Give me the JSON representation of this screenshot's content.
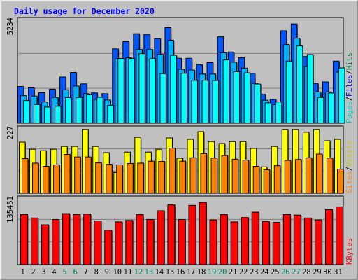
{
  "title": "Daily usage for December 2020",
  "colors": {
    "background": "#c0c0c0",
    "grid": "#808080",
    "title": "#0000ff",
    "pages_fill": "#0057ff",
    "files_fill": "#00b4ff",
    "hits_fill": "#00ffff",
    "visits_fill": "#ffff00",
    "sites_fill": "#ff8000",
    "kbytes_fill": "#ff0000",
    "weekend_day_label": "#008060",
    "weekday_label": "#000000",
    "legend_pages": "#00c8c8",
    "legend_files": "#0000ff",
    "legend_hits": "#008040",
    "legend_sites": "#ff8000",
    "legend_visits": "#c8c800",
    "legend_kbytes": "#ff0000"
  },
  "chart_data": [
    {
      "type": "bar",
      "panel": "hits-files-pages",
      "y_max_label": "5234",
      "ylim": [
        0,
        5234
      ],
      "legend": [
        {
          "text": "Pages",
          "color_key": "legend_pages"
        },
        {
          "text": "/",
          "color_key": "weekday_label"
        },
        {
          "text": "Files",
          "color_key": "legend_files"
        },
        {
          "text": "/",
          "color_key": "weekday_label"
        },
        {
          "text": "Hits",
          "color_key": "legend_hits"
        }
      ],
      "x": [
        1,
        2,
        3,
        4,
        5,
        6,
        7,
        8,
        9,
        10,
        11,
        12,
        13,
        14,
        15,
        16,
        17,
        18,
        19,
        20,
        21,
        22,
        23,
        24,
        25,
        26,
        27,
        28,
        29,
        30,
        31
      ],
      "series": [
        {
          "values": [
            1870,
            1800,
            1550,
            1730,
            2350,
            2580,
            2000,
            1540,
            1500,
            3780,
            4150,
            4550,
            4520,
            4300,
            4860,
            3300,
            3300,
            2970,
            3080,
            4390,
            3620,
            3330,
            2540,
            1480,
            1210,
            4700,
            5050,
            3390,
            2020,
            2100,
            3160
          ]
        },
        {
          "values": [
            1400,
            1380,
            1080,
            1310,
            1700,
            1890,
            1500,
            1210,
            1180,
            3280,
            3330,
            3750,
            3750,
            3500,
            4220,
            2740,
            2700,
            2500,
            2500,
            3580,
            3100,
            2800,
            2020,
            1170,
            940,
            4000,
            4320,
            2880,
            1590,
            1590,
            2600
          ]
        },
        {
          "values": [
            1150,
            950,
            820,
            860,
            1300,
            1310,
            1440,
            1320,
            910,
            3290,
            3290,
            3540,
            3280,
            2520,
            3450,
            2540,
            2180,
            2180,
            2170,
            3220,
            2620,
            2560,
            1990,
            1040,
            1080,
            3160,
            3930,
            3490,
            1310,
            1530,
            2810
          ]
        }
      ]
    },
    {
      "type": "bar",
      "panel": "visits-sites",
      "y_max_label": "227",
      "ylim": [
        0,
        227
      ],
      "legend": [
        {
          "text": "Sites",
          "color_key": "legend_sites"
        },
        {
          "text": "/",
          "color_key": "weekday_label"
        },
        {
          "text": "Visits",
          "color_key": "legend_visits"
        }
      ],
      "x": [
        1,
        2,
        3,
        4,
        5,
        6,
        7,
        8,
        9,
        10,
        11,
        12,
        13,
        14,
        15,
        16,
        17,
        18,
        19,
        20,
        21,
        22,
        23,
        24,
        25,
        26,
        27,
        28,
        29,
        30,
        31
      ],
      "series": [
        {
          "values": [
            180,
            155,
            150,
            155,
            165,
            165,
            225,
            165,
            143,
            73,
            145,
            197,
            145,
            155,
            195,
            123,
            190,
            217,
            182,
            175,
            182,
            182,
            158,
            93,
            165,
            225,
            225,
            215,
            225,
            185,
            190
          ]
        },
        {
          "values": [
            122,
            106,
            95,
            100,
            137,
            128,
            128,
            107,
            102,
            100,
            105,
            106,
            113,
            112,
            159,
            113,
            125,
            140,
            124,
            133,
            120,
            117,
            95,
            83,
            97,
            116,
            119,
            125,
            138,
            124,
            85
          ]
        }
      ]
    },
    {
      "type": "bar",
      "panel": "kbytes",
      "y_max_label": "135451",
      "ylim": [
        0,
        135451
      ],
      "legend": [
        {
          "text": "KBytes",
          "color_key": "legend_kbytes"
        }
      ],
      "x": [
        1,
        2,
        3,
        4,
        5,
        6,
        7,
        8,
        9,
        10,
        11,
        12,
        13,
        14,
        15,
        16,
        17,
        18,
        19,
        20,
        21,
        22,
        23,
        24,
        25,
        26,
        27,
        28,
        29,
        30,
        31
      ],
      "series": [
        {
          "values": [
            103000,
            96000,
            82000,
            93000,
            105000,
            103000,
            104000,
            90000,
            71000,
            88000,
            91000,
            103000,
            93000,
            111000,
            123000,
            93000,
            122000,
            128000,
            92000,
            103000,
            88000,
            97000,
            108000,
            89000,
            87000,
            103000,
            102000,
            96000,
            92000,
            113000,
            119000
          ]
        }
      ]
    }
  ],
  "day_labels": [
    {
      "text": "1",
      "weekend": false
    },
    {
      "text": "2",
      "weekend": false
    },
    {
      "text": "3",
      "weekend": false
    },
    {
      "text": "4",
      "weekend": false
    },
    {
      "text": "5",
      "weekend": true
    },
    {
      "text": "6",
      "weekend": true
    },
    {
      "text": "7",
      "weekend": false
    },
    {
      "text": "8",
      "weekend": false
    },
    {
      "text": "9",
      "weekend": false
    },
    {
      "text": "10",
      "weekend": false
    },
    {
      "text": "11",
      "weekend": false
    },
    {
      "text": "12",
      "weekend": true
    },
    {
      "text": "13",
      "weekend": true
    },
    {
      "text": "14",
      "weekend": false
    },
    {
      "text": "15",
      "weekend": false
    },
    {
      "text": "16",
      "weekend": false
    },
    {
      "text": "17",
      "weekend": false
    },
    {
      "text": "18",
      "weekend": false
    },
    {
      "text": "19",
      "weekend": true
    },
    {
      "text": "20",
      "weekend": true
    },
    {
      "text": "21",
      "weekend": false
    },
    {
      "text": "22",
      "weekend": false
    },
    {
      "text": "23",
      "weekend": false
    },
    {
      "text": "24",
      "weekend": false
    },
    {
      "text": "25",
      "weekend": false
    },
    {
      "text": "26",
      "weekend": true
    },
    {
      "text": "27",
      "weekend": true
    },
    {
      "text": "28",
      "weekend": false
    },
    {
      "text": "29",
      "weekend": false
    },
    {
      "text": "30",
      "weekend": false
    },
    {
      "text": "31",
      "weekend": false
    }
  ]
}
